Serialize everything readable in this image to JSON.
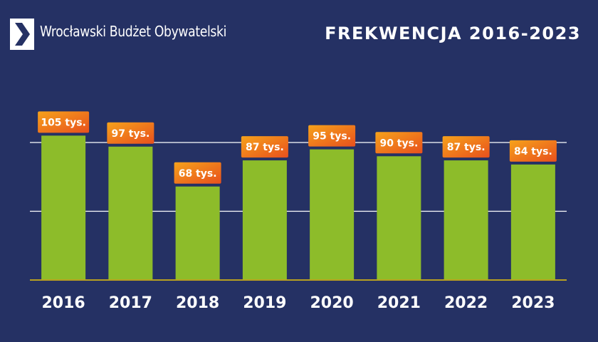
{
  "header": {
    "brand": "Wrocławski Budżet Obywatelski",
    "logo_icon": "chevron-right-icon",
    "title": "FREKWENCJA 2016-2023"
  },
  "colors": {
    "background": "#253164",
    "bar": "#8dbc2a",
    "label_gradient_start": "#f6a21b",
    "label_gradient_end": "#e8501d",
    "gridline": "#ffffff",
    "baseline": "#b8a020"
  },
  "chart_data": {
    "type": "bar",
    "title": "FREKWENCJA 2016-2023",
    "xlabel": "",
    "ylabel": "",
    "categories": [
      "2016",
      "2017",
      "2018",
      "2019",
      "2020",
      "2021",
      "2022",
      "2023"
    ],
    "values": [
      105,
      97,
      68,
      87,
      95,
      90,
      87,
      84
    ],
    "value_labels": [
      "105 tys.",
      "97 tys.",
      "68 tys.",
      "87 tys.",
      "95 tys.",
      "90 tys.",
      "87 tys.",
      "84 tys."
    ],
    "ylim": [
      0,
      110
    ],
    "gridlines": [
      50,
      100
    ],
    "grid": true,
    "legend": "none"
  }
}
